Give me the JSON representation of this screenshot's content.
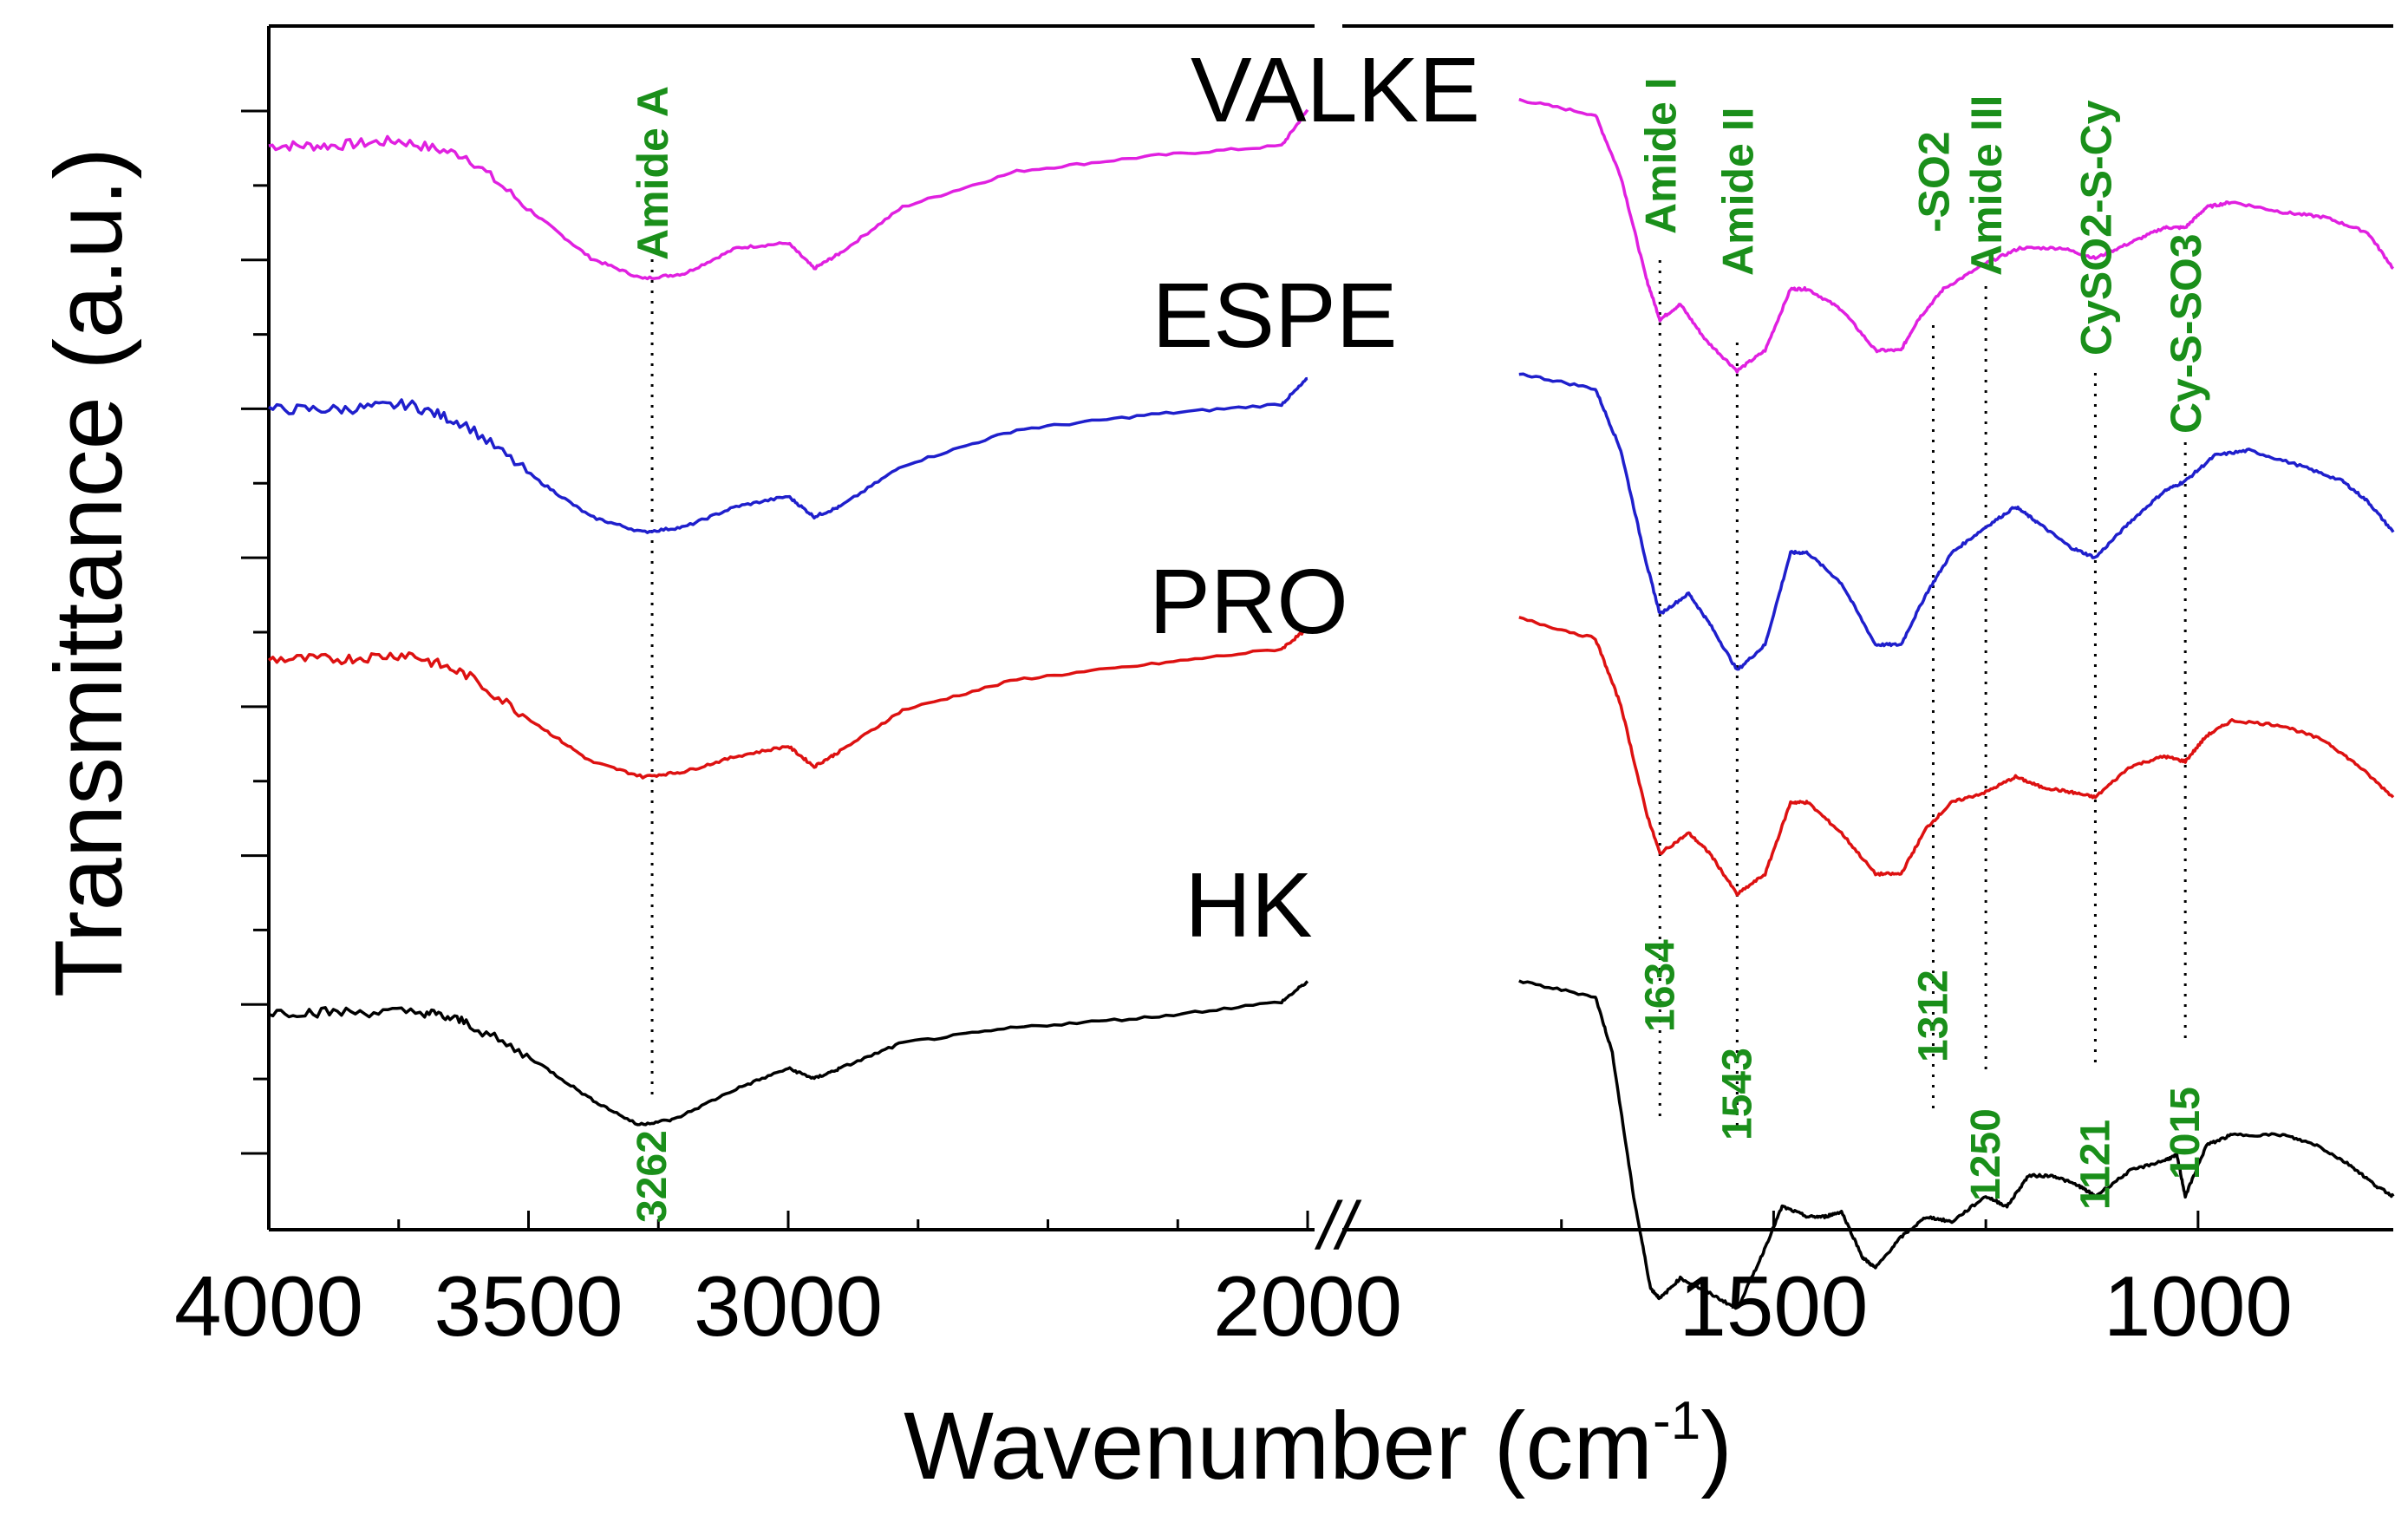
{
  "chart_data": {
    "type": "line",
    "title": "",
    "xlabel_main": "Wavenumber (cm",
    "xlabel_sup": "-1",
    "xlabel_end": ")",
    "ylabel": "Transmittance (a.u.)",
    "x_axis_break": "//",
    "x_segments": [
      [
        4000,
        2000
      ],
      [
        2000,
        770
      ]
    ],
    "x_ticks": [
      {
        "value": 4000,
        "label": "4000"
      },
      {
        "value": 3500,
        "label": "3500"
      },
      {
        "value": 3000,
        "label": "3000"
      },
      {
        "value": 2000,
        "label": "2000"
      },
      {
        "value": 1500,
        "label": "1500"
      },
      {
        "value": 1000,
        "label": "1000"
      }
    ],
    "y_tick_count": 8,
    "series": [
      {
        "name": "VALKE",
        "color": "#e020e0",
        "points": [
          [
            4000,
            1.0
          ],
          [
            3880,
            1.0
          ],
          [
            3750,
            1.005
          ],
          [
            3620,
            0.99
          ],
          [
            3480,
            0.93
          ],
          [
            3380,
            0.89
          ],
          [
            3280,
            0.87
          ],
          [
            3200,
            0.875
          ],
          [
            3100,
            0.9
          ],
          [
            3000,
            0.905
          ],
          [
            2950,
            0.88
          ],
          [
            2900,
            0.895
          ],
          [
            2780,
            0.94
          ],
          [
            2560,
            0.975
          ],
          [
            2300,
            0.99
          ],
          [
            2050,
            1.0
          ],
          [
            2000,
            1.035
          ],
          [
            1800,
            1.045
          ],
          [
            1710,
            1.03
          ],
          [
            1680,
            0.97
          ],
          [
            1650,
            0.87
          ],
          [
            1634,
            0.83
          ],
          [
            1610,
            0.845
          ],
          [
            1580,
            0.81
          ],
          [
            1543,
            0.78
          ],
          [
            1510,
            0.8
          ],
          [
            1480,
            0.86
          ],
          [
            1460,
            0.86
          ],
          [
            1420,
            0.84
          ],
          [
            1380,
            0.8
          ],
          [
            1350,
            0.8
          ],
          [
            1330,
            0.83
          ],
          [
            1300,
            0.86
          ],
          [
            1250,
            0.885
          ],
          [
            1210,
            0.9
          ],
          [
            1160,
            0.9
          ],
          [
            1121,
            0.89
          ],
          [
            1080,
            0.905
          ],
          [
            1040,
            0.92
          ],
          [
            1015,
            0.92
          ],
          [
            990,
            0.94
          ],
          [
            960,
            0.945
          ],
          [
            900,
            0.935
          ],
          [
            850,
            0.93
          ],
          [
            800,
            0.915
          ],
          [
            770,
            0.88
          ]
        ]
      },
      {
        "name": "ESPE",
        "color": "#1f1fcc",
        "points": [
          [
            4000,
            1.0
          ],
          [
            3860,
            1.0
          ],
          [
            3730,
            1.005
          ],
          [
            3620,
            0.985
          ],
          [
            3480,
            0.93
          ],
          [
            3380,
            0.895
          ],
          [
            3280,
            0.88
          ],
          [
            3200,
            0.885
          ],
          [
            3100,
            0.905
          ],
          [
            3000,
            0.915
          ],
          [
            2950,
            0.895
          ],
          [
            2900,
            0.905
          ],
          [
            2780,
            0.945
          ],
          [
            2560,
            0.98
          ],
          [
            2300,
            0.995
          ],
          [
            2050,
            1.005
          ],
          [
            2000,
            1.03
          ],
          [
            1800,
            1.035
          ],
          [
            1710,
            1.02
          ],
          [
            1680,
            0.96
          ],
          [
            1650,
            0.85
          ],
          [
            1634,
            0.8
          ],
          [
            1600,
            0.82
          ],
          [
            1575,
            0.79
          ],
          [
            1543,
            0.745
          ],
          [
            1510,
            0.77
          ],
          [
            1480,
            0.86
          ],
          [
            1460,
            0.86
          ],
          [
            1420,
            0.83
          ],
          [
            1380,
            0.77
          ],
          [
            1350,
            0.77
          ],
          [
            1320,
            0.82
          ],
          [
            1290,
            0.86
          ],
          [
            1250,
            0.885
          ],
          [
            1215,
            0.905
          ],
          [
            1190,
            0.89
          ],
          [
            1150,
            0.865
          ],
          [
            1121,
            0.855
          ],
          [
            1080,
            0.89
          ],
          [
            1040,
            0.92
          ],
          [
            1015,
            0.93
          ],
          [
            980,
            0.955
          ],
          [
            940,
            0.96
          ],
          [
            880,
            0.945
          ],
          [
            830,
            0.93
          ],
          [
            800,
            0.91
          ],
          [
            770,
            0.88
          ]
        ]
      },
      {
        "name": "PRO",
        "color": "#dd1111",
        "points": [
          [
            4000,
            1.0
          ],
          [
            3860,
            1.0
          ],
          [
            3730,
            1.005
          ],
          [
            3620,
            0.985
          ],
          [
            3480,
            0.935
          ],
          [
            3380,
            0.9
          ],
          [
            3280,
            0.885
          ],
          [
            3200,
            0.89
          ],
          [
            3100,
            0.905
          ],
          [
            3000,
            0.915
          ],
          [
            2950,
            0.895
          ],
          [
            2900,
            0.91
          ],
          [
            2780,
            0.95
          ],
          [
            2560,
            0.98
          ],
          [
            2300,
            0.995
          ],
          [
            2050,
            1.01
          ],
          [
            2000,
            1.03
          ],
          [
            1800,
            1.04
          ],
          [
            1710,
            1.02
          ],
          [
            1680,
            0.955
          ],
          [
            1650,
            0.85
          ],
          [
            1634,
            0.81
          ],
          [
            1600,
            0.83
          ],
          [
            1575,
            0.81
          ],
          [
            1543,
            0.77
          ],
          [
            1510,
            0.79
          ],
          [
            1480,
            0.86
          ],
          [
            1460,
            0.86
          ],
          [
            1420,
            0.83
          ],
          [
            1380,
            0.79
          ],
          [
            1350,
            0.79
          ],
          [
            1320,
            0.835
          ],
          [
            1290,
            0.86
          ],
          [
            1250,
            0.87
          ],
          [
            1215,
            0.885
          ],
          [
            1185,
            0.875
          ],
          [
            1150,
            0.87
          ],
          [
            1121,
            0.865
          ],
          [
            1080,
            0.895
          ],
          [
            1040,
            0.905
          ],
          [
            1015,
            0.9
          ],
          [
            990,
            0.925
          ],
          [
            960,
            0.94
          ],
          [
            900,
            0.935
          ],
          [
            850,
            0.92
          ],
          [
            810,
            0.895
          ],
          [
            770,
            0.865
          ]
        ]
      },
      {
        "name": "HK",
        "color": "#000000",
        "points": [
          [
            4000,
            1.0
          ],
          [
            3860,
            1.0
          ],
          [
            3700,
            1.0
          ],
          [
            3620,
            0.99
          ],
          [
            3480,
            0.95
          ],
          [
            3380,
            0.915
          ],
          [
            3290,
            0.89
          ],
          [
            3220,
            0.895
          ],
          [
            3100,
            0.925
          ],
          [
            3000,
            0.945
          ],
          [
            2950,
            0.935
          ],
          [
            2900,
            0.945
          ],
          [
            2780,
            0.97
          ],
          [
            2560,
            0.985
          ],
          [
            2300,
            0.995
          ],
          [
            2050,
            1.01
          ],
          [
            2000,
            1.03
          ],
          [
            1800,
            1.03
          ],
          [
            1710,
            1.015
          ],
          [
            1690,
            0.96
          ],
          [
            1665,
            0.82
          ],
          [
            1645,
            0.73
          ],
          [
            1634,
            0.72
          ],
          [
            1610,
            0.74
          ],
          [
            1575,
            0.725
          ],
          [
            1543,
            0.71
          ],
          [
            1515,
            0.76
          ],
          [
            1490,
            0.81
          ],
          [
            1460,
            0.8
          ],
          [
            1440,
            0.8
          ],
          [
            1420,
            0.805
          ],
          [
            1395,
            0.76
          ],
          [
            1380,
            0.75
          ],
          [
            1350,
            0.78
          ],
          [
            1320,
            0.8
          ],
          [
            1290,
            0.795
          ],
          [
            1250,
            0.82
          ],
          [
            1225,
            0.81
          ],
          [
            1200,
            0.84
          ],
          [
            1170,
            0.84
          ],
          [
            1140,
            0.83
          ],
          [
            1121,
            0.82
          ],
          [
            1080,
            0.845
          ],
          [
            1040,
            0.855
          ],
          [
            1025,
            0.86
          ],
          [
            1015,
            0.82
          ],
          [
            990,
            0.87
          ],
          [
            960,
            0.88
          ],
          [
            900,
            0.88
          ],
          [
            860,
            0.87
          ],
          [
            820,
            0.85
          ],
          [
            790,
            0.83
          ],
          [
            770,
            0.82
          ]
        ]
      }
    ],
    "series_labels": [
      {
        "series": "VALKE",
        "text": "VALKE"
      },
      {
        "series": "ESPE",
        "text": "ESPE"
      },
      {
        "series": "PRO",
        "text": "PRO"
      },
      {
        "series": "HK",
        "text": "HK"
      }
    ],
    "annotations": [
      {
        "x": 3262,
        "name": "Amide A",
        "value_label": "3262"
      },
      {
        "x": 1634,
        "name": "Amide I",
        "value_label": "1634"
      },
      {
        "x": 1543,
        "name": "Amide II",
        "value_label": "1543"
      },
      {
        "x": 1312,
        "name": "-SO2",
        "value_label": "1312"
      },
      {
        "x": 1250,
        "name": "Amide III",
        "value_label": "1250"
      },
      {
        "x": 1121,
        "name": "CySO2-S-Cy",
        "value_label": "1121"
      },
      {
        "x": 1015,
        "name": "Cy-S-SO3",
        "value_label": "1015"
      }
    ]
  }
}
